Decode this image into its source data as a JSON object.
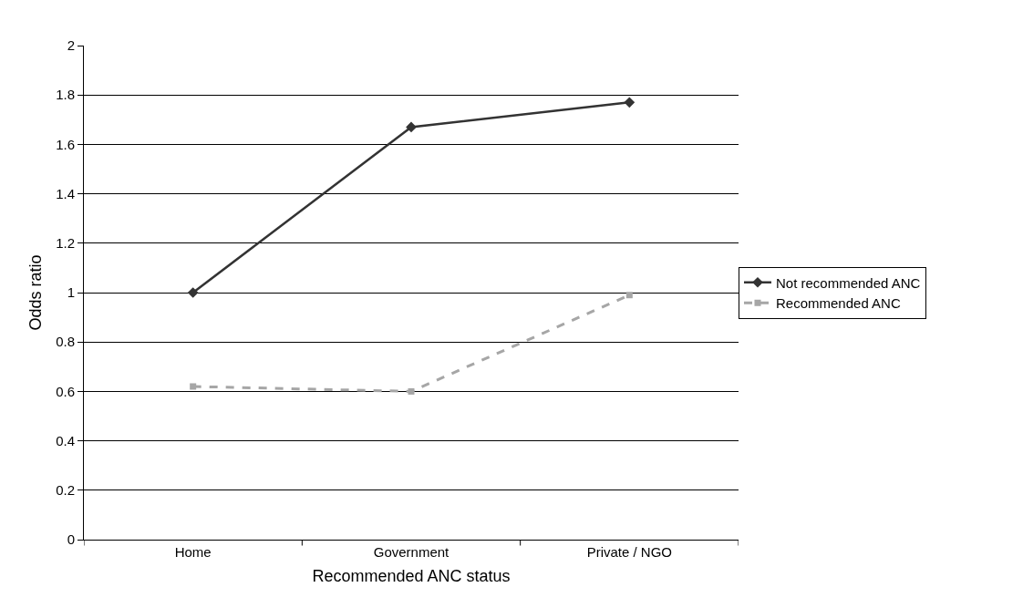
{
  "chart_data": {
    "type": "line",
    "xlabel": "Recommended ANC status",
    "ylabel": "Odds ratio",
    "categories": [
      "Home",
      "Government",
      "Private / NGO"
    ],
    "series": [
      {
        "name": "Not recommended ANC",
        "color": "#333333",
        "values": [
          1.0,
          1.67,
          1.77
        ],
        "marker": "diamond",
        "line_style": "solid"
      },
      {
        "name": "Recommended ANC",
        "color": "#a6a6a6",
        "values": [
          0.62,
          0.6,
          0.99
        ],
        "marker": "square",
        "line_style": "dashed"
      }
    ],
    "ylim": [
      0,
      2
    ],
    "yticks": [
      0,
      0.2,
      0.4,
      0.6,
      0.8,
      1,
      1.2,
      1.4,
      1.6,
      1.8,
      2
    ],
    "grid": "y",
    "legend": "right"
  }
}
